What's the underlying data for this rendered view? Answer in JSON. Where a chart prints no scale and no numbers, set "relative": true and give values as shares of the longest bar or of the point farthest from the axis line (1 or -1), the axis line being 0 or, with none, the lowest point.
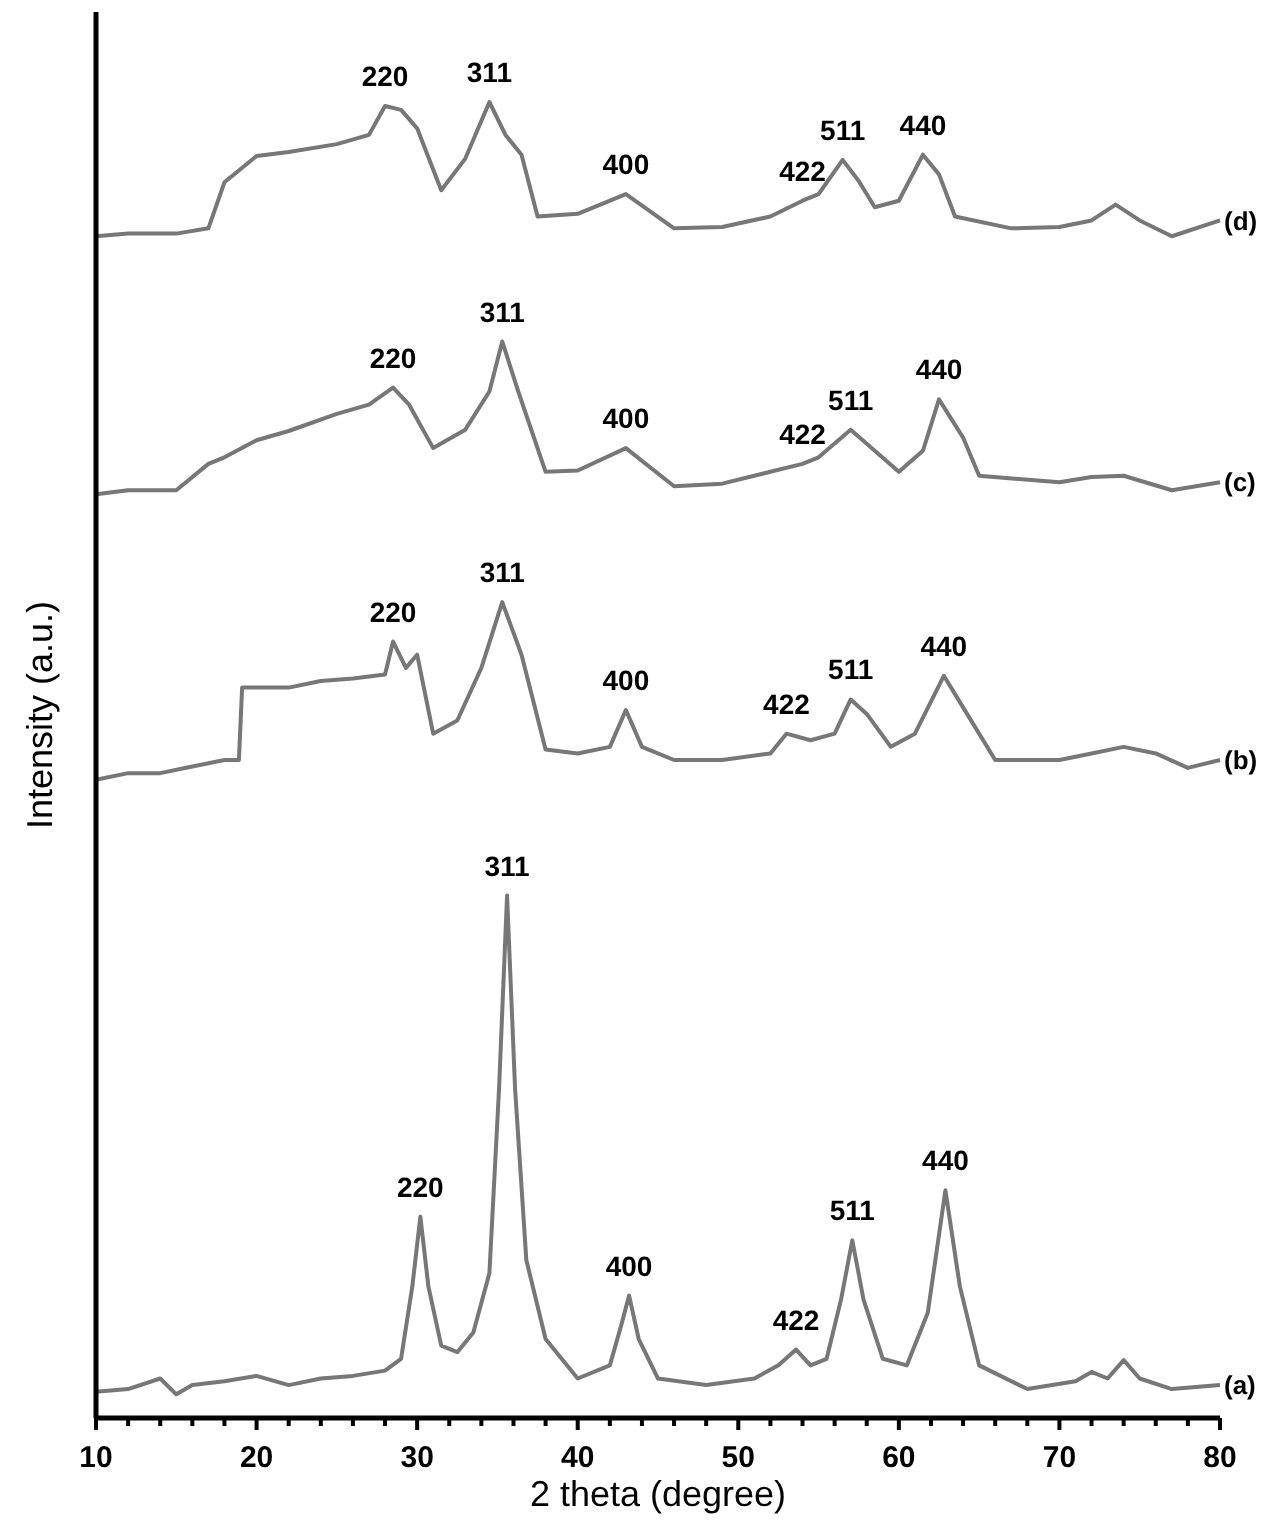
{
  "chart_data": {
    "type": "line",
    "relative": true,
    "xlabel": "2 theta (degree)",
    "ylabel": "Intensity (a.u.)",
    "xlim": [
      10,
      80
    ],
    "xticks": [
      10,
      {
        "value": 12,
        "label": null
      },
      {
        "value": 14,
        "label": null
      },
      {
        "value": 16,
        "label": null
      },
      {
        "value": 18,
        "label": null
      },
      20,
      {
        "value": 22,
        "label": null
      },
      {
        "value": 24,
        "label": null
      },
      {
        "value": 26,
        "label": null
      },
      {
        "value": 28,
        "label": null
      },
      30,
      {
        "value": 32,
        "label": null
      },
      {
        "value": 34,
        "label": null
      },
      {
        "value": 36,
        "label": null
      },
      {
        "value": 38,
        "label": null
      },
      40,
      {
        "value": 42,
        "label": null
      },
      {
        "value": 44,
        "label": null
      },
      {
        "value": 46,
        "label": null
      },
      {
        "value": 48,
        "label": null
      },
      50,
      {
        "value": 52,
        "label": null
      },
      {
        "value": 54,
        "label": null
      },
      {
        "value": 56,
        "label": null
      },
      {
        "value": 58,
        "label": null
      },
      60,
      {
        "value": 62,
        "label": null
      },
      {
        "value": 64,
        "label": null
      },
      {
        "value": 66,
        "label": null
      },
      {
        "value": 68,
        "label": null
      },
      70,
      {
        "value": 72,
        "label": null
      },
      {
        "value": 74,
        "label": null
      },
      {
        "value": 76,
        "label": null
      },
      {
        "value": 78,
        "label": null
      },
      80
    ],
    "marker": "none",
    "line_style": "solid",
    "series": [
      {
        "name": "(a)",
        "color": "#777777",
        "x": [
          10,
          12,
          14,
          15,
          16,
          18,
          20,
          22,
          24,
          26,
          28,
          29,
          29.7,
          30.2,
          30.7,
          31.5,
          32.5,
          33.5,
          34.5,
          35.1,
          35.6,
          36.1,
          36.8,
          38,
          40,
          42,
          42.7,
          43.2,
          43.8,
          45,
          48,
          51,
          52.5,
          53.6,
          54.5,
          55.5,
          56.4,
          57.1,
          57.8,
          59,
          60.5,
          61.8,
          62.9,
          63.8,
          65,
          68,
          71,
          72,
          73,
          74,
          75,
          77,
          80
        ],
        "values": [
          0.02,
          0.022,
          0.03,
          0.018,
          0.025,
          0.028,
          0.032,
          0.025,
          0.03,
          0.032,
          0.036,
          0.045,
          0.1,
          0.153,
          0.1,
          0.055,
          0.05,
          0.065,
          0.11,
          0.25,
          0.397,
          0.25,
          0.12,
          0.06,
          0.03,
          0.04,
          0.07,
          0.093,
          0.06,
          0.03,
          0.025,
          0.03,
          0.04,
          0.052,
          0.04,
          0.045,
          0.09,
          0.135,
          0.09,
          0.045,
          0.04,
          0.08,
          0.173,
          0.1,
          0.04,
          0.022,
          0.028,
          0.035,
          0.03,
          0.044,
          0.03,
          0.022,
          0.025
        ]
      },
      {
        "name": "(b)",
        "color": "#777777",
        "x": [
          10,
          12,
          14,
          16,
          18,
          18.9,
          19.1,
          20,
          22,
          24,
          26,
          28,
          28.5,
          29.3,
          30,
          31,
          32.5,
          34,
          35.3,
          36.5,
          38,
          40,
          42,
          43,
          44,
          46,
          49,
          52,
          53,
          54.5,
          56,
          57,
          58,
          59.5,
          61,
          62.8,
          64,
          66,
          70,
          72,
          74,
          76,
          78,
          80
        ],
        "values": [
          0.485,
          0.49,
          0.49,
          0.495,
          0.5,
          0.5,
          0.555,
          0.555,
          0.555,
          0.56,
          0.562,
          0.565,
          0.59,
          0.57,
          0.58,
          0.52,
          0.53,
          0.57,
          0.62,
          0.58,
          0.508,
          0.505,
          0.51,
          0.538,
          0.51,
          0.5,
          0.5,
          0.505,
          0.52,
          0.515,
          0.52,
          0.546,
          0.535,
          0.51,
          0.52,
          0.564,
          0.54,
          0.5,
          0.5,
          0.505,
          0.51,
          0.505,
          0.494,
          0.5
        ]
      },
      {
        "name": "(c)",
        "color": "#777777",
        "x": [
          10,
          12,
          15,
          17,
          18,
          20,
          22,
          25,
          27,
          28.5,
          29.5,
          31,
          33,
          34.5,
          35.3,
          36.3,
          38,
          40,
          43,
          46,
          49,
          52,
          54,
          55,
          57,
          58.5,
          60,
          61.5,
          62.5,
          64,
          65,
          70,
          72,
          74,
          77,
          80
        ],
        "values": [
          0.702,
          0.705,
          0.705,
          0.725,
          0.73,
          0.743,
          0.75,
          0.763,
          0.77,
          0.783,
          0.77,
          0.737,
          0.751,
          0.78,
          0.818,
          0.78,
          0.719,
          0.72,
          0.737,
          0.708,
          0.71,
          0.719,
          0.725,
          0.73,
          0.751,
          0.735,
          0.719,
          0.735,
          0.774,
          0.745,
          0.716,
          0.711,
          0.715,
          0.716,
          0.705,
          0.711
        ]
      },
      {
        "name": "(d)",
        "color": "#777777",
        "x": [
          10,
          12,
          15,
          17,
          18,
          20,
          22,
          25,
          27,
          28,
          29,
          30,
          31.5,
          33,
          34.5,
          35.5,
          36.5,
          37.5,
          40,
          43,
          46,
          49,
          52,
          54,
          55,
          56.5,
          57.5,
          58.5,
          60,
          61.5,
          62.5,
          63.5,
          67,
          70,
          72,
          73.5,
          75,
          77,
          80
        ],
        "values": [
          0.898,
          0.9,
          0.9,
          0.904,
          0.939,
          0.959,
          0.962,
          0.968,
          0.975,
          0.997,
          0.994,
          0.98,
          0.933,
          0.957,
          1,
          0.975,
          0.96,
          0.913,
          0.915,
          0.93,
          0.904,
          0.905,
          0.913,
          0.925,
          0.93,
          0.956,
          0.94,
          0.92,
          0.925,
          0.96,
          0.945,
          0.913,
          0.904,
          0.905,
          0.91,
          0.922,
          0.91,
          0.898,
          0.91
        ]
      }
    ],
    "annotations": [
      {
        "text": "220",
        "x": 30.2,
        "y": 0.153
      },
      {
        "text": "311",
        "x": 35.6,
        "y": 0.397
      },
      {
        "text": "400",
        "x": 43.2,
        "y": 0.093
      },
      {
        "text": "422",
        "x": 53.6,
        "y": 0.052
      },
      {
        "text": "511",
        "x": 57.1,
        "y": 0.135
      },
      {
        "text": "440",
        "x": 62.9,
        "y": 0.173
      },
      {
        "text": "220",
        "x": 28.5,
        "y": 0.59
      },
      {
        "text": "311",
        "x": 35.3,
        "y": 0.62
      },
      {
        "text": "400",
        "x": 43,
        "y": 0.538
      },
      {
        "text": "422",
        "x": 53,
        "y": 0.52
      },
      {
        "text": "511",
        "x": 57,
        "y": 0.546
      },
      {
        "text": "440",
        "x": 62.8,
        "y": 0.564
      },
      {
        "text": "220",
        "x": 28.5,
        "y": 0.783
      },
      {
        "text": "311",
        "x": 35.3,
        "y": 0.818
      },
      {
        "text": "400",
        "x": 43,
        "y": 0.737
      },
      {
        "text": "422",
        "x": 54,
        "y": 0.725
      },
      {
        "text": "511",
        "x": 57,
        "y": 0.751
      },
      {
        "text": "440",
        "x": 62.5,
        "y": 0.774
      },
      {
        "text": "220",
        "x": 28,
        "y": 0.997
      },
      {
        "text": "311",
        "x": 34.5,
        "y": 1
      },
      {
        "text": "400",
        "x": 43,
        "y": 0.93
      },
      {
        "text": "422",
        "x": 54,
        "y": 0.925
      },
      {
        "text": "511",
        "x": 56.5,
        "y": 0.956
      },
      {
        "text": "440",
        "x": 61.5,
        "y": 0.96
      }
    ]
  }
}
